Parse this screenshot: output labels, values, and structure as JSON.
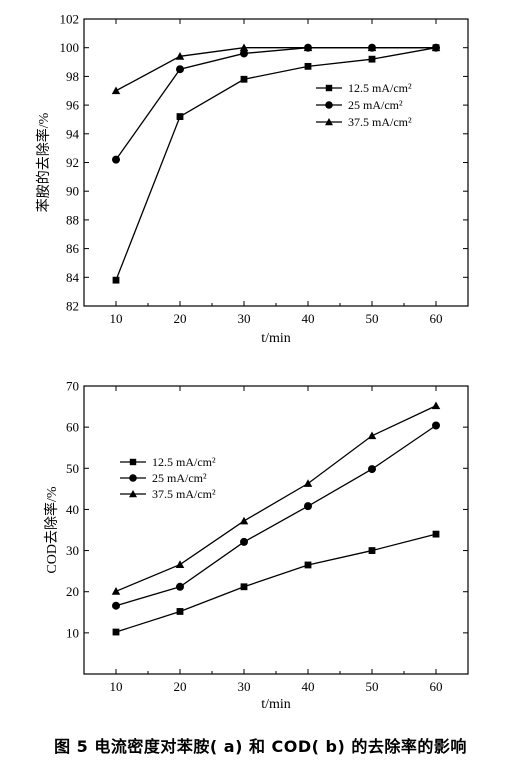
{
  "caption": "图 5   电流密度对苯胺( a) 和 COD( b) 的去除率的影响",
  "chart_data": [
    {
      "type": "line",
      "title": "",
      "xlabel": "t/min",
      "ylabel": "苯胺的去除率/%",
      "x": [
        10,
        20,
        30,
        40,
        50,
        60
      ],
      "xlim": [
        5,
        65
      ],
      "ylim": [
        82,
        102
      ],
      "xticks": [
        "10",
        "20",
        "30",
        "40",
        "50",
        "60"
      ],
      "yticks": [
        "82",
        "84",
        "86",
        "88",
        "90",
        "92",
        "94",
        "96",
        "98",
        "100",
        "102"
      ],
      "legend_position": "right",
      "series": [
        {
          "name": "12.5 mA/cm²",
          "marker": "square",
          "values": [
            83.8,
            95.2,
            97.8,
            98.7,
            99.2,
            100.0
          ]
        },
        {
          "name": "25 mA/cm²",
          "marker": "circle",
          "values": [
            92.2,
            98.5,
            99.6,
            100.0,
            100.0,
            100.0
          ]
        },
        {
          "name": "37.5 mA/cm²",
          "marker": "triangle",
          "values": [
            97.0,
            99.4,
            100.0,
            100.0,
            100.0,
            100.0
          ]
        }
      ]
    },
    {
      "type": "line",
      "title": "",
      "xlabel": "t/min",
      "ylabel": "COD去除率/%",
      "x": [
        10,
        20,
        30,
        40,
        50,
        60
      ],
      "xlim": [
        5,
        65
      ],
      "ylim": [
        0,
        70
      ],
      "xticks": [
        "10",
        "20",
        "30",
        "40",
        "50",
        "60"
      ],
      "yticks": [
        "10",
        "20",
        "30",
        "40",
        "50",
        "60",
        "70"
      ],
      "legend_position": "upper-left",
      "series": [
        {
          "name": "12.5 mA/cm²",
          "marker": "square",
          "values": [
            10.2,
            15.2,
            21.2,
            26.5,
            30.0,
            34.0
          ]
        },
        {
          "name": "25 mA/cm²",
          "marker": "circle",
          "values": [
            16.6,
            21.2,
            32.1,
            40.8,
            49.8,
            60.4
          ]
        },
        {
          "name": "37.5 mA/cm²",
          "marker": "triangle",
          "values": [
            20.1,
            26.6,
            37.2,
            46.3,
            57.9,
            65.2
          ]
        }
      ]
    }
  ]
}
